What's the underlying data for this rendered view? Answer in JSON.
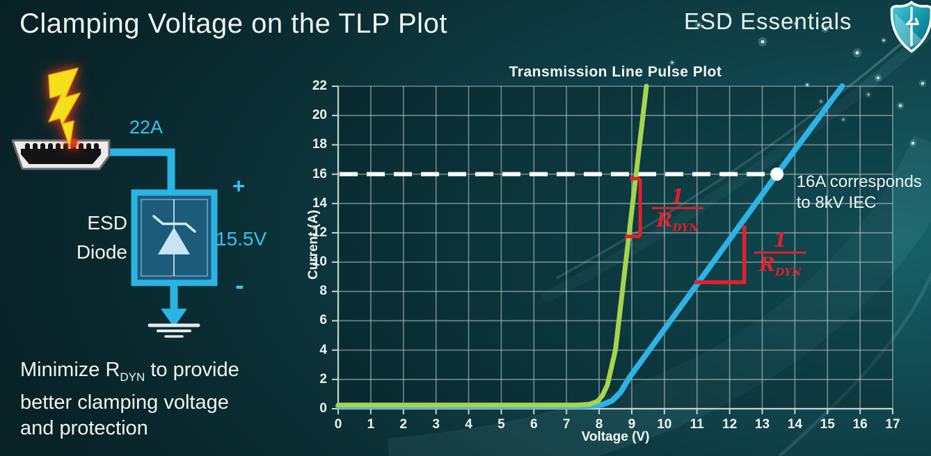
{
  "slide": {
    "title": "Clamping Voltage on the TLP Plot"
  },
  "brand": {
    "name": "ESD Essentials",
    "logo_icon": "shield-pulse-icon"
  },
  "diagram": {
    "surge_current": "22A",
    "component_line1": "ESD",
    "component_line2": "Diode",
    "plus": "+",
    "clamp_voltage": "15.5V",
    "minus": "-"
  },
  "caption": {
    "line1_prefix": "Minimize R",
    "line1_sub": "DYN",
    "line1_suffix": " to provide",
    "line2": "better clamping voltage",
    "line3": "and protection"
  },
  "chart_data": {
    "type": "line",
    "title": "Transmission Line Pulse Plot",
    "xlabel": "Voltage (V)",
    "ylabel": "Current (A)",
    "xlim": [
      0,
      17
    ],
    "ylim": [
      0,
      22
    ],
    "x_ticks": [
      0,
      1,
      2,
      3,
      4,
      5,
      6,
      7,
      8,
      9,
      10,
      11,
      12,
      13,
      14,
      15,
      16,
      17
    ],
    "y_ticks": [
      0,
      2,
      4,
      6,
      8,
      10,
      12,
      14,
      16,
      18,
      20,
      22
    ],
    "grid": true,
    "series": [
      {
        "id": "blue-curve",
        "color": "#2eb3e6",
        "width": 8,
        "points": [
          [
            0,
            0.18
          ],
          [
            7.6,
            0.18
          ],
          [
            8.1,
            0.28
          ],
          [
            8.4,
            0.55
          ],
          [
            8.65,
            1.1
          ],
          [
            8.95,
            2.2
          ],
          [
            13.45,
            16
          ],
          [
            15.45,
            22
          ]
        ]
      },
      {
        "id": "green-curve",
        "color": "#a6d44c",
        "width": 7,
        "points": [
          [
            0,
            0.25
          ],
          [
            7.3,
            0.25
          ],
          [
            7.7,
            0.3
          ],
          [
            7.95,
            0.5
          ],
          [
            8.1,
            0.9
          ],
          [
            8.25,
            1.6
          ],
          [
            8.5,
            4.0
          ],
          [
            9.45,
            22
          ]
        ]
      }
    ],
    "annotations": [
      {
        "id": "clamp-16a-line",
        "type": "dashed_hline",
        "i": 16,
        "v_from": 0,
        "v_to": 13.45,
        "color": "#ffffff"
      },
      {
        "id": "iec-point",
        "type": "point",
        "v": 13.45,
        "i": 16,
        "radius": 9.5,
        "color": "#ffffff"
      },
      {
        "id": "iec-label",
        "type": "label",
        "lines": [
          "16A corresponds",
          "to 8kV IEC"
        ],
        "v": 14.05,
        "i": 16.15,
        "color": "#eef3f3"
      },
      {
        "id": "rdyn-bracket-green",
        "type": "bracket",
        "v": 9.26,
        "i_top": 15.7,
        "i_bot": 11.75,
        "color": "#e51f2a"
      },
      {
        "id": "rdyn-frac-green",
        "type": "fraction",
        "numerator": "1",
        "denominator": "R",
        "den_sub": "DYN",
        "v": 10.4,
        "i": 13.55,
        "color": "#e51f2a"
      },
      {
        "id": "rdyn-angle-blue",
        "type": "angle",
        "v1": 10.92,
        "v2": 12.45,
        "i1": 8.63,
        "i2": 12.48,
        "color": "#e51f2a"
      },
      {
        "id": "rdyn-frac-blue",
        "type": "fraction",
        "numerator": "1",
        "denominator": "R",
        "den_sub": "DYN",
        "v": 13.55,
        "i": 10.55,
        "color": "#e51f2a"
      }
    ]
  },
  "decor": {
    "sparkles": [
      [
        1004,
        36,
        2
      ],
      [
        1046,
        22,
        1.5
      ],
      [
        1096,
        60,
        2.5
      ],
      [
        1144,
        34,
        1.5
      ],
      [
        1186,
        42,
        2
      ],
      [
        1232,
        76,
        2.5
      ],
      [
        1262,
        112,
        2
      ],
      [
        1160,
        122,
        1.5
      ],
      [
        1294,
        152,
        2
      ],
      [
        1212,
        172,
        1.5
      ],
      [
        1312,
        206,
        2
      ],
      [
        966,
        90,
        1.5
      ],
      [
        1270,
        58,
        1.5
      ],
      [
        1326,
        120,
        2
      ],
      [
        1180,
        146,
        1.5
      ],
      [
        1248,
        136,
        1.8
      ]
    ]
  },
  "colors": {
    "curve_green": "#a6d44c",
    "curve_blue": "#2eb3e6",
    "annotation_red": "#e51f2a",
    "diagram_cyan": "#2ab4e4",
    "bolt_yellow": "#f3df1c",
    "background_teal": "#0e3f46",
    "text_white": "#f2f5f5"
  }
}
